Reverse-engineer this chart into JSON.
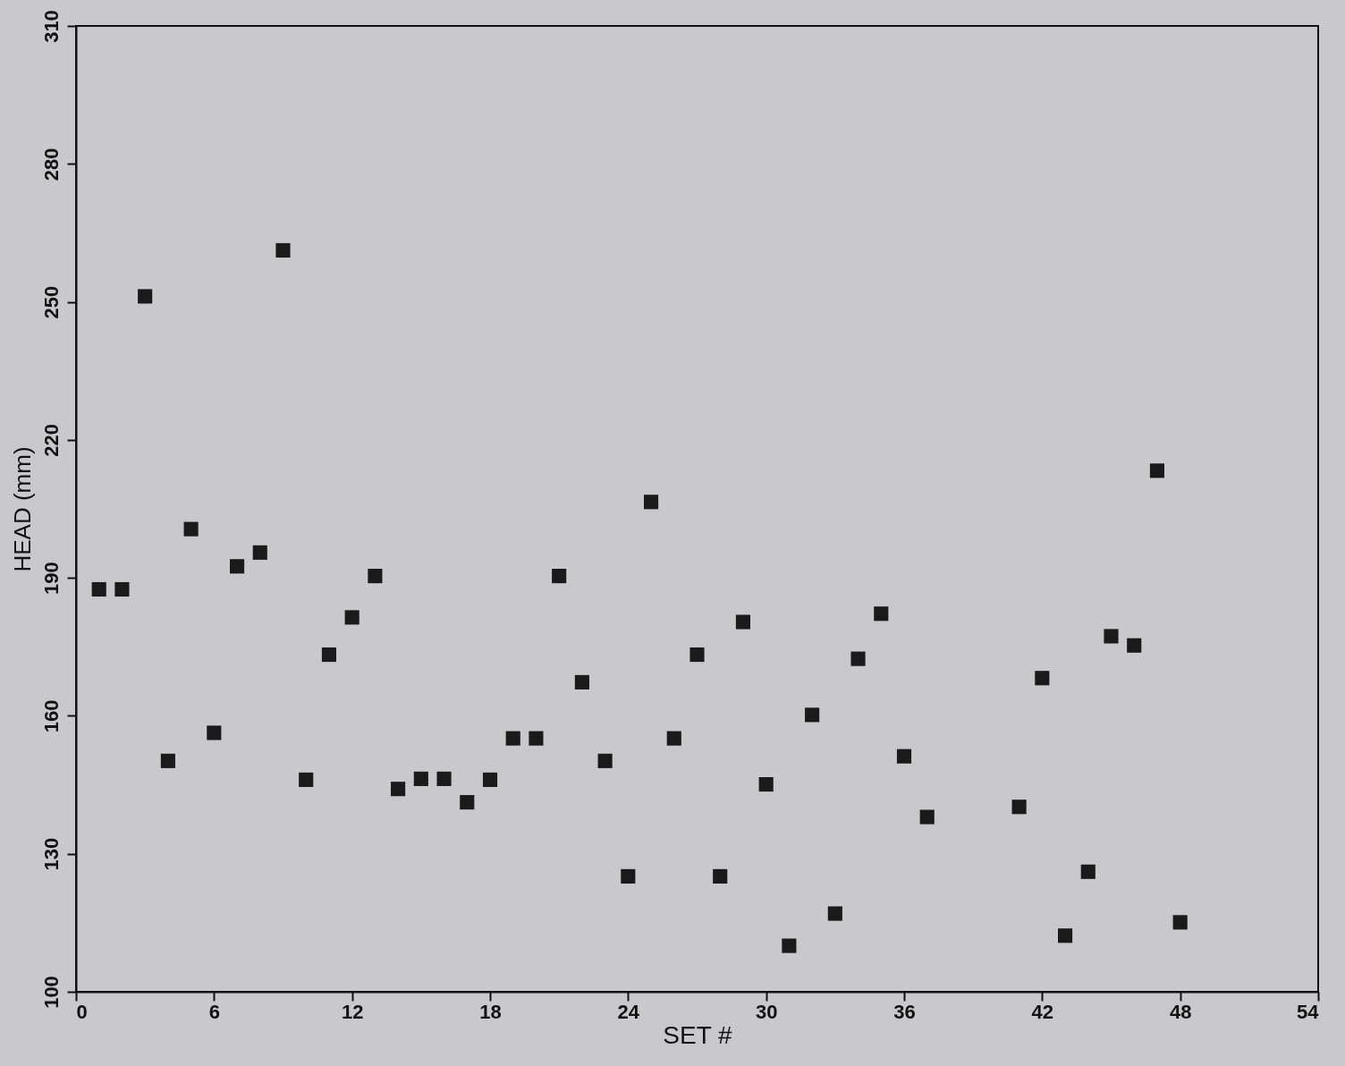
{
  "chart_data": {
    "type": "scatter",
    "xlabel": "SET #",
    "ylabel": "HEAD (mm)",
    "xlim": [
      0,
      54
    ],
    "xticks": [
      0,
      6,
      12,
      18,
      24,
      30,
      36,
      42,
      48,
      54
    ],
    "ylim": [
      100,
      310
    ],
    "yticks": [
      100,
      130,
      160,
      190,
      220,
      250,
      280,
      310
    ],
    "marker": "square",
    "grid": false,
    "x": [
      1,
      2,
      3,
      4,
      5,
      6,
      7,
      8,
      9,
      10,
      11,
      12,
      13,
      14,
      15,
      16,
      17,
      18,
      19,
      20,
      21,
      22,
      23,
      24,
      25,
      26,
      27,
      28,
      29,
      30,
      31,
      32,
      33,
      34,
      35,
      36,
      37,
      41,
      42,
      43,
      44,
      45,
      46,
      47,
      48
    ],
    "series": [
      {
        "color": "#1a1a1a",
        "values": [
          187.5,
          187.5,
          251.2,
          150.2,
          200.6,
          156.3,
          192.5,
          195.5,
          261.2,
          146.1,
          173.3,
          181.4,
          190.4,
          144.1,
          146.3,
          146.3,
          141.2,
          146.1,
          155.1,
          155.1,
          190.4,
          167.3,
          150.2,
          125.1,
          206.5,
          155.1,
          173.3,
          125.1,
          180.4,
          145.1,
          110,
          160.2,
          117,
          172.4,
          182.2,
          151.2,
          138,
          140.2,
          168.2,
          112.2,
          126.1,
          177.3,
          175.3,
          213.3,
          115.1
        ]
      }
    ]
  }
}
